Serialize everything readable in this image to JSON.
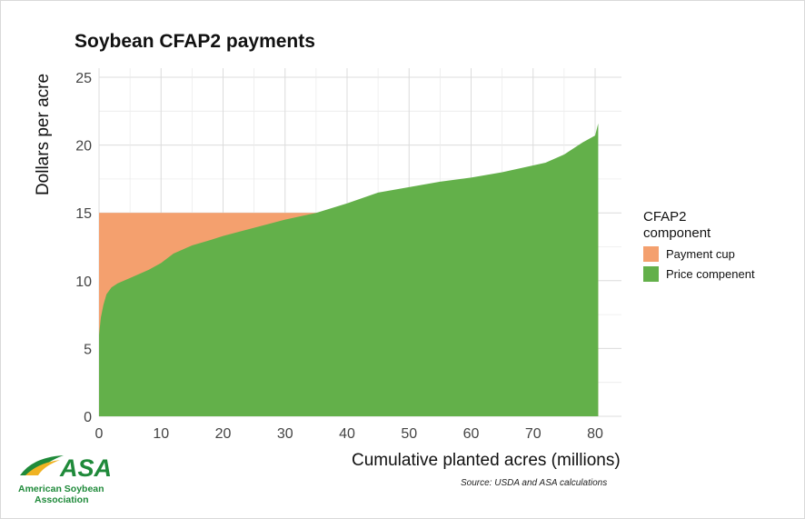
{
  "chart_data": {
    "type": "area",
    "title": "Soybean CFAP2 payments",
    "xlabel": "Cumulative planted acres (millions)",
    "ylabel": "Dollars per acre",
    "xlim": [
      0,
      80.5
    ],
    "ylim": [
      0,
      25
    ],
    "x_ticks": [
      "0",
      "10",
      "20",
      "30",
      "40",
      "50",
      "60",
      "70",
      "80"
    ],
    "y_ticks": [
      "0",
      "5",
      "10",
      "15",
      "20",
      "25"
    ],
    "grid": true,
    "legend_position": "right",
    "legend_title": "CFAP2 component",
    "series": [
      {
        "name": "Payment cup",
        "color": "#f4a06e",
        "kind": "cap",
        "value": 15
      },
      {
        "name": "Price compenent",
        "color": "#63b04a",
        "kind": "curve",
        "x": [
          0,
          0.3,
          0.7,
          1.2,
          2,
          3,
          5,
          8,
          10,
          12,
          15,
          18,
          20,
          25,
          30,
          35,
          40,
          45,
          50,
          55,
          60,
          65,
          70,
          72,
          75,
          78,
          80,
          80.5
        ],
        "y": [
          6.0,
          7.3,
          8.2,
          9.0,
          9.5,
          9.8,
          10.2,
          10.8,
          11.3,
          12.0,
          12.6,
          13.0,
          13.3,
          13.9,
          14.5,
          15.0,
          15.7,
          16.5,
          16.9,
          17.3,
          17.6,
          18.0,
          18.5,
          18.7,
          19.3,
          20.2,
          20.7,
          21.6
        ]
      }
    ],
    "source": "Source: USDA and ASA calculations"
  },
  "logo": {
    "letters": "ASA",
    "line1": "American Soybean",
    "line2": "Association"
  }
}
